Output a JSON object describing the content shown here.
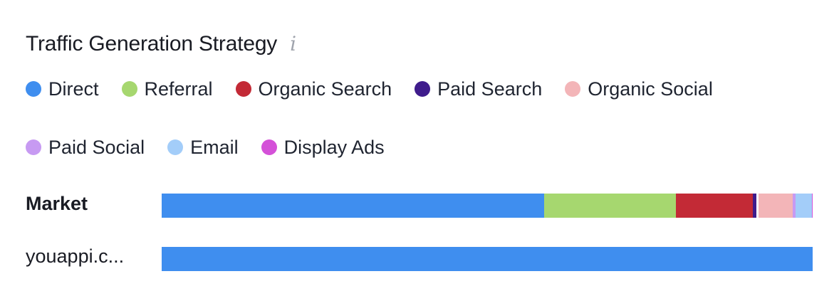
{
  "header": {
    "title": "Traffic Generation Strategy",
    "info_icon": "info-icon"
  },
  "legend": [
    {
      "label": "Direct",
      "color": "#3f8eef"
    },
    {
      "label": "Referral",
      "color": "#a6d76f"
    },
    {
      "label": "Organic Search",
      "color": "#c32a36"
    },
    {
      "label": "Paid Search",
      "color": "#3f1c8c"
    },
    {
      "label": "Organic Social",
      "color": "#f3b5b8"
    },
    {
      "label": "Paid Social",
      "color": "#c79af2"
    },
    {
      "label": "Email",
      "color": "#a3cdf9"
    },
    {
      "label": "Display Ads",
      "color": "#d451d8"
    }
  ],
  "chart_data": {
    "type": "bar",
    "orientation": "horizontal",
    "stacked": true,
    "normalized_percent": true,
    "categories": [
      "Market",
      "youappi.c..."
    ],
    "series": [
      {
        "name": "Direct",
        "values": [
          58.5,
          100
        ]
      },
      {
        "name": "Referral",
        "values": [
          20.2,
          0
        ]
      },
      {
        "name": "Organic Search",
        "values": [
          11.8,
          0
        ]
      },
      {
        "name": "Paid Search",
        "values": [
          0.5,
          0
        ]
      },
      {
        "name": "Organic Social",
        "values": [
          5.5,
          0
        ]
      },
      {
        "name": "Paid Social",
        "values": [
          0.5,
          0
        ]
      },
      {
        "name": "Email",
        "values": [
          2.5,
          0
        ]
      },
      {
        "name": "Display Ads",
        "values": [
          0.1,
          0
        ]
      }
    ],
    "xlim": [
      0,
      100
    ],
    "legend_position": "top",
    "grid": false
  }
}
